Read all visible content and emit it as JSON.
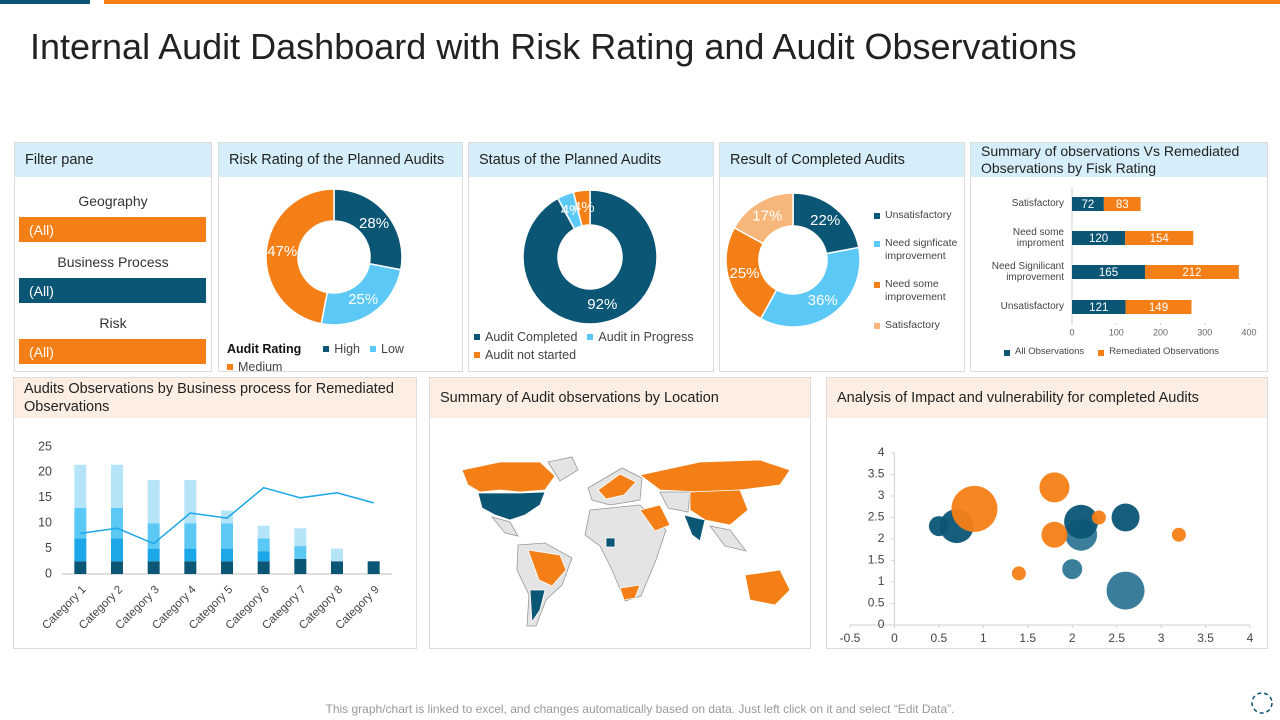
{
  "title": "Internal Audit Dashboard with Risk Rating and Audit Observations",
  "filter_pane": {
    "title": "Filter pane",
    "filters": [
      {
        "label": "Geography",
        "value": "(All)"
      },
      {
        "label": "Business Process",
        "value": "(All)"
      },
      {
        "label": "Risk",
        "value": "(All)"
      }
    ]
  },
  "chart_data": [
    {
      "type": "donut",
      "title": "Risk Rating of the Planned Audits",
      "legend_title": "Audit Rating",
      "categories": [
        "High",
        "Low",
        "Medium"
      ],
      "values": [
        28,
        25,
        47
      ],
      "value_labels": [
        "28%",
        "25%",
        "47%"
      ],
      "colors": [
        "#0b5575",
        "#5bc8f5",
        "#f47f16"
      ],
      "legend": "bottom"
    },
    {
      "type": "donut",
      "title": "Status of the Planned Audits",
      "categories": [
        "Audit Completed",
        "Audit in Progress",
        "Audit not started"
      ],
      "values": [
        92,
        4,
        4
      ],
      "value_labels": [
        "92%",
        "4%",
        "4%"
      ],
      "colors": [
        "#0b5575",
        "#5bc8f5",
        "#f47f16"
      ],
      "legend": "bottom"
    },
    {
      "type": "donut",
      "title": "Result of Completed Audits",
      "categories": [
        "Unsatisfactory",
        "Need signficate improvement",
        "Need some improvement",
        "Satisfactory"
      ],
      "values": [
        22,
        36,
        25,
        17
      ],
      "value_labels": [
        "22%",
        "36%",
        "25%",
        "17%"
      ],
      "colors": [
        "#0b5575",
        "#5bc8f5",
        "#f47f16",
        "#f8b77a"
      ],
      "legend": "right"
    },
    {
      "type": "hbar_stacked",
      "title": "Summary of observations  Vs Remediated Observations by Fisk Rating",
      "categories": [
        "Satisfactory",
        "Need some improment",
        "Need Signilicant improvement",
        "Unsatisfactory"
      ],
      "series": [
        {
          "name": "All Observations",
          "color": "#0b5575",
          "values": [
            72,
            120,
            165,
            121
          ]
        },
        {
          "name": "Remediated Observations",
          "color": "#f47f16",
          "values": [
            83,
            154,
            212,
            149
          ]
        }
      ],
      "xlim": [
        0,
        400
      ],
      "xticks": [
        0,
        100,
        200,
        300,
        400
      ],
      "legend": "bottom"
    },
    {
      "type": "bar_line",
      "title": "Audits Observations by Business process for Remediated Observations",
      "categories": [
        "Category 1",
        "Category 2",
        "Category 3",
        "Category 4",
        "Category 5",
        "Category 6",
        "Category 7",
        "Category 8",
        "Category 9"
      ],
      "series": [
        {
          "color": "#0b5575",
          "values": [
            2.5,
            2.5,
            2.5,
            2.5,
            2.5,
            2.5,
            3,
            2.5,
            2.5
          ]
        },
        {
          "color": "#1ca7e8",
          "values": [
            4.5,
            4.5,
            2.5,
            2.5,
            2.5,
            2,
            0,
            0,
            0
          ]
        },
        {
          "color": "#5bc8f5",
          "values": [
            6,
            6,
            5,
            5,
            5,
            2.5,
            2.5,
            0,
            0
          ]
        },
        {
          "color": "#b5e3f8",
          "values": [
            8.5,
            8.5,
            8.5,
            8.5,
            2.5,
            2.5,
            3.5,
            2.5,
            0
          ]
        }
      ],
      "line": {
        "color": "#1ca7e8",
        "values": [
          8,
          9,
          6,
          12,
          11,
          17,
          15,
          16,
          14
        ]
      },
      "ylim": [
        0,
        25
      ],
      "yticks": [
        0,
        5,
        10,
        15,
        20,
        25
      ]
    },
    {
      "type": "map",
      "title": "Summary of Audit observations by Location"
    },
    {
      "type": "bubble",
      "title": "Analysis of Impact and vulnerability  for completed Audits",
      "series": [
        {
          "color": "#2f7796",
          "x": [
            2.1,
            2.0,
            2.6
          ],
          "values": [
            2.1,
            1.3,
            0.8
          ],
          "sizes": [
            16,
            10,
            19
          ]
        },
        {
          "color": "#0b5575",
          "x": [
            0.5,
            0.7,
            2.1,
            2.6
          ],
          "values": [
            2.3,
            2.3,
            2.4,
            2.5
          ],
          "sizes": [
            10,
            17,
            17,
            14
          ]
        },
        {
          "color": "#f47f16",
          "x": [
            0.9,
            1.8,
            1.8,
            2.3,
            1.4,
            3.2
          ],
          "values": [
            2.7,
            3.2,
            2.1,
            2.5,
            1.2,
            2.1
          ],
          "sizes": [
            23,
            15,
            13,
            7,
            7,
            7
          ]
        }
      ],
      "xlim": [
        -0.5,
        4
      ],
      "xticks": [
        -0.5,
        0,
        0.5,
        1,
        1.5,
        2,
        2.5,
        3,
        3.5,
        4
      ],
      "ylim": [
        0,
        4
      ],
      "yticks": [
        0,
        0.5,
        1,
        1.5,
        2,
        2.5,
        3,
        3.5,
        4
      ]
    }
  ],
  "footer": "This graph/chart is linked to excel, and changes automatically based on data. Just left click on it and select “Edit Data”."
}
